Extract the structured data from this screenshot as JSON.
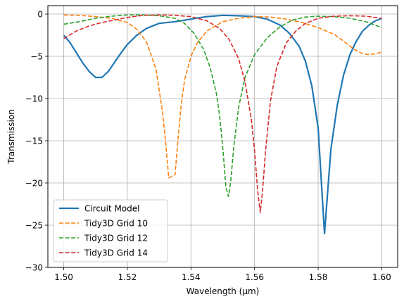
{
  "chart_data": {
    "type": "line",
    "title": "",
    "xlabel": "Wavelength (μm)",
    "ylabel": "Transmission",
    "xlim": [
      1.495,
      1.605
    ],
    "ylim": [
      -30,
      1
    ],
    "xticks": [
      1.5,
      1.52,
      1.54,
      1.56,
      1.58,
      1.6
    ],
    "xtick_labels": [
      "1.50",
      "1.52",
      "1.54",
      "1.56",
      "1.58",
      "1.60"
    ],
    "yticks": [
      0,
      -5,
      -10,
      -15,
      -20,
      -25,
      -30
    ],
    "ytick_labels": [
      "0",
      "−5",
      "−10",
      "−15",
      "−20",
      "−25",
      "−30"
    ],
    "grid": true,
    "legend_position": "lower-left",
    "series": [
      {
        "name": "Circuit Model",
        "color": "#1f77b4",
        "dash": "solid",
        "x": [
          1.5,
          1.502,
          1.504,
          1.506,
          1.508,
          1.51,
          1.512,
          1.514,
          1.516,
          1.518,
          1.52,
          1.523,
          1.526,
          1.53,
          1.535,
          1.54,
          1.545,
          1.55,
          1.555,
          1.56,
          1.564,
          1.568,
          1.571,
          1.574,
          1.576,
          1.578,
          1.58,
          1.5815,
          1.582,
          1.5825,
          1.584,
          1.586,
          1.588,
          1.59,
          1.592,
          1.594,
          1.596,
          1.598,
          1.6
        ],
        "y": [
          -2.5,
          -3.4,
          -4.6,
          -5.8,
          -6.8,
          -7.5,
          -7.5,
          -6.8,
          -5.7,
          -4.6,
          -3.6,
          -2.5,
          -1.7,
          -1.1,
          -0.9,
          -0.6,
          -0.3,
          -0.15,
          -0.2,
          -0.3,
          -0.6,
          -1.3,
          -2.3,
          -3.8,
          -5.6,
          -8.5,
          -13.5,
          -23.0,
          -26.0,
          -23.5,
          -16.0,
          -10.8,
          -7.2,
          -4.8,
          -3.2,
          -2.0,
          -1.3,
          -0.8,
          -0.5
        ]
      },
      {
        "name": "Tidy3D Grid 10",
        "color": "#ff7f0e",
        "dash": "dashed",
        "x": [
          1.5,
          1.505,
          1.51,
          1.515,
          1.52,
          1.523,
          1.526,
          1.529,
          1.531,
          1.532,
          1.533,
          1.534,
          1.535,
          1.536,
          1.537,
          1.538,
          1.54,
          1.542,
          1.545,
          1.55,
          1.555,
          1.56,
          1.565,
          1.57,
          1.575,
          1.58,
          1.585,
          1.588,
          1.591,
          1.594,
          1.596,
          1.598,
          1.6
        ],
        "y": [
          -0.1,
          -0.15,
          -0.3,
          -0.5,
          -1.0,
          -1.8,
          -3.3,
          -6.5,
          -11.5,
          -15.0,
          -19.4,
          -19.2,
          -19.0,
          -14.5,
          -10.5,
          -7.8,
          -5.0,
          -3.4,
          -2.0,
          -0.9,
          -0.5,
          -0.3,
          -0.35,
          -0.6,
          -1.0,
          -1.6,
          -2.4,
          -3.2,
          -4.1,
          -4.7,
          -4.8,
          -4.7,
          -4.5
        ]
      },
      {
        "name": "Tidy3D Grid 12",
        "color": "#2ca02c",
        "dash": "dashed",
        "x": [
          1.5,
          1.505,
          1.51,
          1.515,
          1.52,
          1.525,
          1.53,
          1.535,
          1.538,
          1.541,
          1.544,
          1.546,
          1.548,
          1.549,
          1.55,
          1.551,
          1.5518,
          1.5525,
          1.5535,
          1.555,
          1.557,
          1.56,
          1.564,
          1.568,
          1.572,
          1.576,
          1.58,
          1.585,
          1.59,
          1.595,
          1.6
        ],
        "y": [
          -1.2,
          -0.9,
          -0.5,
          -0.25,
          -0.1,
          -0.1,
          -0.2,
          -0.5,
          -1.1,
          -2.3,
          -4.2,
          -6.3,
          -9.4,
          -12.0,
          -15.8,
          -20.5,
          -21.6,
          -19.8,
          -15.6,
          -11.0,
          -7.5,
          -4.8,
          -2.8,
          -1.5,
          -0.7,
          -0.35,
          -0.25,
          -0.3,
          -0.5,
          -0.9,
          -1.6
        ]
      },
      {
        "name": "Tidy3D Grid 14",
        "color": "#d62728",
        "dash": "dashed",
        "x": [
          1.5,
          1.504,
          1.508,
          1.512,
          1.516,
          1.52,
          1.525,
          1.53,
          1.535,
          1.54,
          1.545,
          1.549,
          1.552,
          1.555,
          1.557,
          1.559,
          1.56,
          1.561,
          1.5618,
          1.5625,
          1.5635,
          1.565,
          1.567,
          1.57,
          1.573,
          1.576,
          1.58,
          1.585,
          1.59,
          1.595,
          1.6
        ],
        "y": [
          -2.9,
          -2.0,
          -1.4,
          -1.0,
          -0.7,
          -0.4,
          -0.15,
          -0.1,
          -0.15,
          -0.3,
          -0.8,
          -1.7,
          -3.0,
          -5.3,
          -8.0,
          -12.5,
          -16.2,
          -21.0,
          -23.5,
          -21.0,
          -16.0,
          -10.3,
          -6.2,
          -3.4,
          -2.0,
          -1.1,
          -0.5,
          -0.25,
          -0.2,
          -0.25,
          -0.5
        ]
      }
    ]
  }
}
